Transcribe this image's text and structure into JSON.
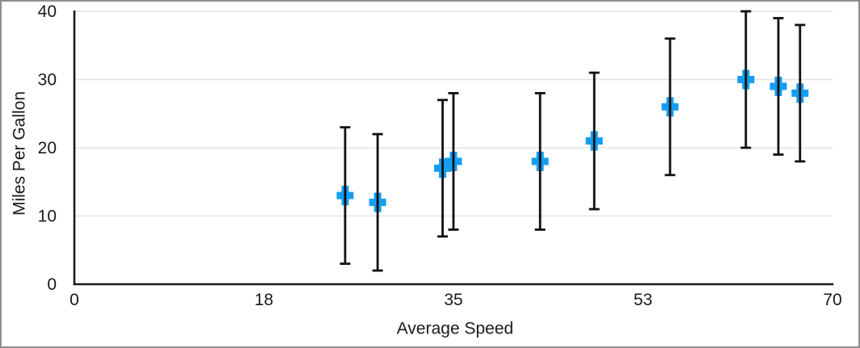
{
  "chart_data": {
    "type": "scatter",
    "title": "",
    "xlabel": "Average Speed",
    "ylabel": "Miles Per Gallon",
    "xlim": [
      0,
      70
    ],
    "ylim": [
      0,
      40
    ],
    "grid": "horizontal-only",
    "legend_position": "none",
    "x_ticks": [
      {
        "value": 0,
        "label": "0"
      },
      {
        "value": 17.5,
        "label": "18"
      },
      {
        "value": 35,
        "label": "35"
      },
      {
        "value": 52.5,
        "label": "53"
      },
      {
        "value": 70,
        "label": "70"
      }
    ],
    "y_ticks": [
      {
        "value": 0,
        "label": "0"
      },
      {
        "value": 10,
        "label": "10"
      },
      {
        "value": 20,
        "label": "20"
      },
      {
        "value": 30,
        "label": "30"
      },
      {
        "value": 40,
        "label": "40"
      }
    ],
    "series": [
      {
        "name": "Miles Per Gallon",
        "marker": "plus",
        "y_error_symmetric": 10,
        "points": [
          {
            "x": 25,
            "y": 13,
            "y_low": 3,
            "y_high": 23
          },
          {
            "x": 28,
            "y": 12,
            "y_low": 2,
            "y_high": 22
          },
          {
            "x": 34,
            "y": 17,
            "y_low": 7,
            "y_high": 27
          },
          {
            "x": 35,
            "y": 18,
            "y_low": 8,
            "y_high": 28
          },
          {
            "x": 43,
            "y": 18,
            "y_low": 8,
            "y_high": 28
          },
          {
            "x": 48,
            "y": 21,
            "y_low": 11,
            "y_high": 31
          },
          {
            "x": 55,
            "y": 26,
            "y_low": 16,
            "y_high": 36
          },
          {
            "x": 62,
            "y": 30,
            "y_low": 20,
            "y_high": 40
          },
          {
            "x": 65,
            "y": 29,
            "y_low": 19,
            "y_high": 39
          },
          {
            "x": 67,
            "y": 28,
            "y_low": 18,
            "y_high": 38
          }
        ]
      }
    ],
    "colors": {
      "marker": "#149df2",
      "error_bar": "#101010",
      "axis": "#1c1c1c",
      "gridline": "#e3e3e3",
      "text": "#1a1a1a",
      "background": "#ffffff",
      "frame_border": "#8f8f8f"
    }
  }
}
